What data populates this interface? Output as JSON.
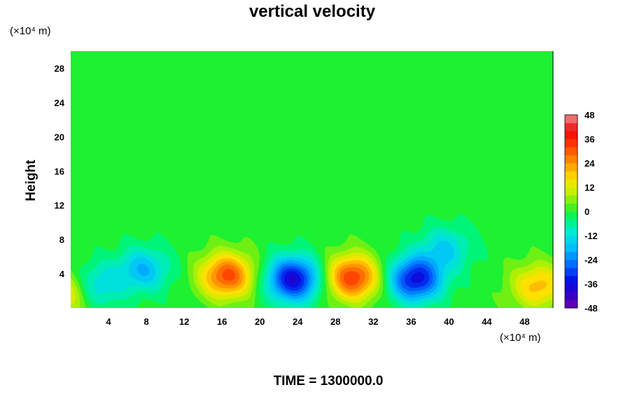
{
  "chart_data": {
    "type": "heatmap",
    "title": "vertical velocity",
    "ylabel": "Height",
    "xlabel": "",
    "y_unit_label": "(×10⁴ m)",
    "x_unit_label": "(×10⁴ m)",
    "xlim": [
      0,
      51
    ],
    "ylim": [
      0,
      30
    ],
    "x_ticks": [
      "4",
      "8",
      "12",
      "16",
      "20",
      "24",
      "28",
      "32",
      "36",
      "40",
      "44",
      "48"
    ],
    "y_ticks": [
      "4",
      "8",
      "12",
      "16",
      "20",
      "24",
      "28"
    ],
    "colorbar": {
      "min": -48,
      "max": 48,
      "step": 4,
      "tick_labels": [
        "48",
        "36",
        "24",
        "12",
        "0",
        "-12",
        "-24",
        "-36",
        "-48"
      ]
    },
    "features": [
      {
        "x": 0.0,
        "y": 2.0,
        "value": 22
      },
      {
        "x": 2.2,
        "y": 2.5,
        "value": -20
      },
      {
        "x": 7.6,
        "y": 4.5,
        "value": -18
      },
      {
        "x": 16.5,
        "y": 3.8,
        "value": 32
      },
      {
        "x": 23.5,
        "y": 3.4,
        "value": -38
      },
      {
        "x": 29.8,
        "y": 3.6,
        "value": 34
      },
      {
        "x": 36.4,
        "y": 3.4,
        "value": -36
      },
      {
        "x": 39.6,
        "y": 7.0,
        "value": -14
      },
      {
        "x": 49.4,
        "y": 2.6,
        "value": 20
      }
    ],
    "footer": "TIME = 1300000.0"
  }
}
